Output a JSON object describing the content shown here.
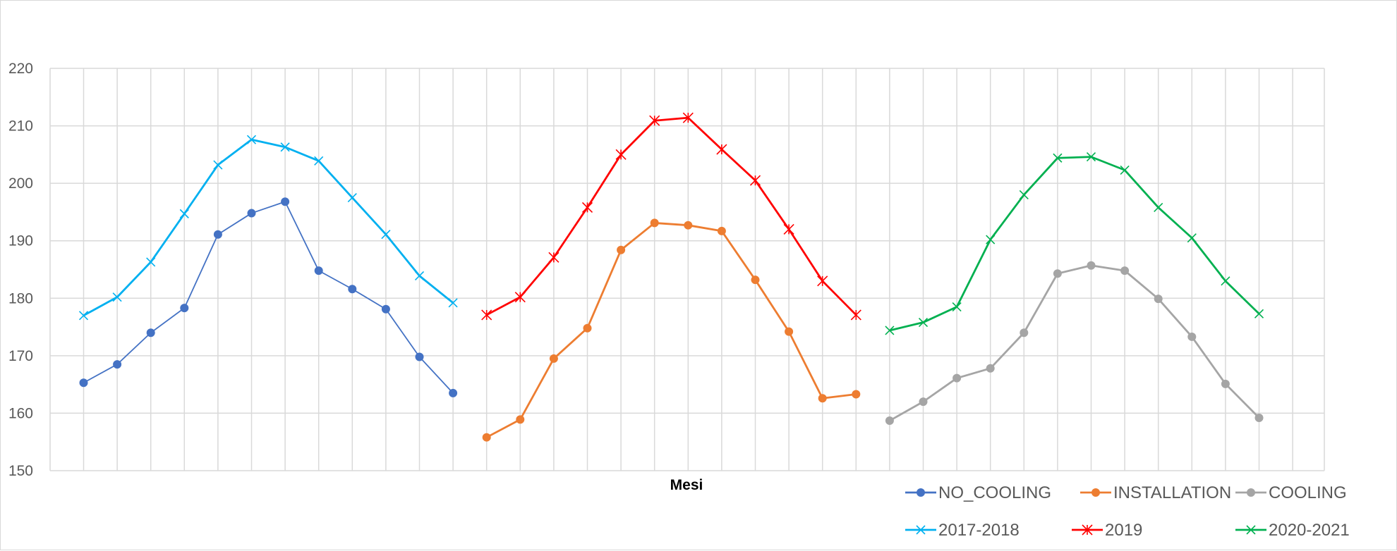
{
  "chart_data": {
    "type": "line",
    "xlabel": "Mesi",
    "ylabel": "",
    "ylim": [
      150,
      220
    ],
    "yticks": [
      150,
      160,
      170,
      180,
      190,
      200,
      210,
      220
    ],
    "grid": true,
    "legend_position": "bottom-right",
    "x": [
      1,
      2,
      3,
      4,
      5,
      6,
      7,
      8,
      9,
      10,
      11,
      12,
      13,
      14,
      15,
      16,
      17,
      18,
      19,
      20,
      21,
      22,
      23,
      24,
      25,
      26,
      27,
      28,
      29,
      30,
      31,
      32,
      33,
      34,
      35,
      36,
      37
    ],
    "series": [
      {
        "name": "NO_COOLING",
        "color": "#4472C4",
        "marker": "circle",
        "x": [
          1,
          2,
          3,
          4,
          5,
          6,
          7,
          8,
          9,
          10,
          11,
          12
        ],
        "values": [
          165.3,
          168.5,
          174.0,
          178.3,
          191.1,
          194.8,
          196.8,
          184.8,
          181.6,
          178.1,
          169.8,
          163.5
        ]
      },
      {
        "name": "INSTALLATION",
        "color": "#ED7D31",
        "marker": "circle",
        "x": [
          13,
          14,
          15,
          16,
          17,
          18,
          19,
          20,
          21,
          22,
          23,
          24
        ],
        "values": [
          155.8,
          158.9,
          169.5,
          174.8,
          188.4,
          193.1,
          192.7,
          191.7,
          183.2,
          174.2,
          162.6,
          163.3
        ]
      },
      {
        "name": "COOLING",
        "color": "#A5A5A5",
        "marker": "circle",
        "x": [
          25,
          26,
          27,
          28,
          29,
          30,
          31,
          32,
          33,
          34,
          35,
          36
        ],
        "values": [
          158.7,
          162.0,
          166.1,
          167.8,
          174.0,
          184.3,
          185.7,
          184.8,
          179.9,
          173.3,
          165.1,
          159.2
        ]
      },
      {
        "name": "2017-2018",
        "color": "#00B0F0",
        "marker": "x",
        "x": [
          1,
          2,
          3,
          4,
          5,
          6,
          7,
          8,
          9,
          10,
          11,
          12
        ],
        "values": [
          177.0,
          180.2,
          186.3,
          194.7,
          203.2,
          207.6,
          206.3,
          203.9,
          197.5,
          191.1,
          183.9,
          179.2
        ]
      },
      {
        "name": "2019",
        "color": "#FF0000",
        "marker": "star",
        "x": [
          13,
          14,
          15,
          16,
          17,
          18,
          19,
          20,
          21,
          22,
          23,
          24
        ],
        "values": [
          177.1,
          180.2,
          187.1,
          195.8,
          205.0,
          210.9,
          211.4,
          205.9,
          200.5,
          192.0,
          183.0,
          177.1
        ]
      },
      {
        "name": "2020-2021",
        "color": "#00B050",
        "marker": "x",
        "x": [
          25,
          26,
          27,
          28,
          29,
          30,
          31,
          32,
          33,
          34,
          35,
          36
        ],
        "values": [
          174.4,
          175.8,
          178.5,
          190.2,
          198.0,
          204.4,
          204.6,
          202.3,
          195.8,
          190.5,
          183.0,
          177.3
        ]
      }
    ]
  }
}
